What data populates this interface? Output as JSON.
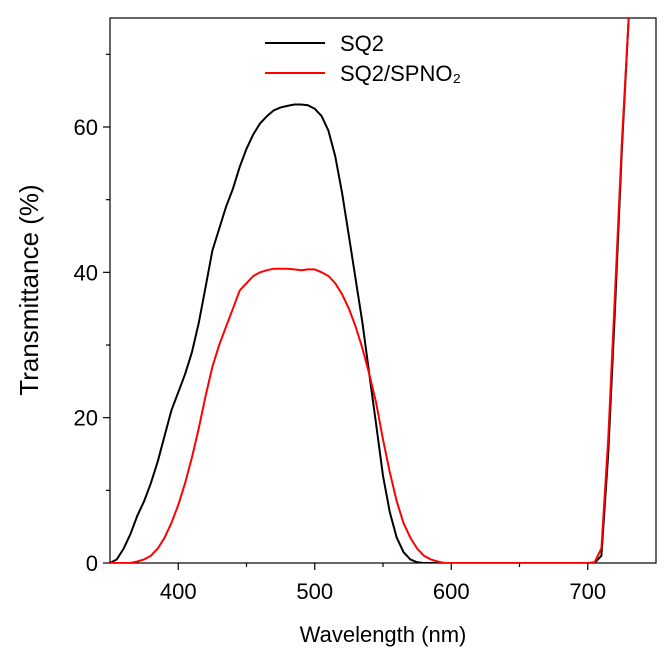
{
  "chart_data": {
    "type": "line",
    "x_label": "Wavelength (nm)",
    "y_label": "Transmittance (%)",
    "x": [
      350,
      355,
      360,
      365,
      370,
      375,
      380,
      385,
      390,
      395,
      400,
      405,
      410,
      415,
      420,
      425,
      430,
      435,
      440,
      445,
      450,
      455,
      460,
      465,
      470,
      475,
      480,
      485,
      490,
      495,
      500,
      505,
      510,
      515,
      520,
      525,
      530,
      535,
      540,
      545,
      550,
      555,
      560,
      565,
      570,
      575,
      580,
      585,
      590,
      595,
      600,
      605,
      610,
      615,
      620,
      625,
      630,
      635,
      640,
      645,
      650,
      655,
      660,
      665,
      670,
      675,
      680,
      685,
      690,
      695,
      700,
      705,
      710,
      715,
      720,
      725,
      730
    ],
    "series": [
      {
        "name": "SQ2",
        "color": "#000000",
        "values": [
          0,
          0.5,
          2,
          4,
          6.5,
          8.5,
          11,
          14,
          17.5,
          21,
          23.5,
          26,
          29,
          33,
          38,
          43,
          46,
          49,
          51.5,
          54.5,
          57,
          59,
          60.5,
          61.5,
          62.3,
          62.7,
          62.9,
          63.1,
          63.1,
          63,
          62.5,
          61.5,
          59.5,
          56,
          51,
          45,
          39,
          33,
          26,
          19,
          12,
          7,
          3.5,
          1.5,
          0.5,
          0.1,
          0,
          0,
          0,
          0,
          0,
          0,
          0,
          0,
          0,
          0,
          0,
          0,
          0,
          0,
          0,
          0,
          0,
          0,
          0,
          0,
          0,
          0,
          0,
          0,
          0,
          0,
          1,
          15,
          35,
          57,
          75
        ]
      },
      {
        "name": "SQ2/SPNO₂",
        "color": "#ff0000",
        "values": [
          0,
          0,
          0,
          0,
          0.2,
          0.5,
          1,
          2,
          3.5,
          5.5,
          8,
          11,
          14.5,
          18.5,
          23,
          27,
          30,
          32.5,
          35,
          37.5,
          38.5,
          39.5,
          40,
          40.3,
          40.5,
          40.5,
          40.5,
          40.4,
          40.3,
          40.4,
          40.4,
          40,
          39.5,
          38.5,
          37,
          35,
          32.5,
          29.5,
          26,
          22,
          17,
          12.5,
          8.5,
          5.5,
          3.5,
          2,
          1,
          0.5,
          0.2,
          0,
          0,
          0,
          0,
          0,
          0,
          0,
          0,
          0,
          0,
          0,
          0,
          0,
          0,
          0,
          0,
          0,
          0,
          0,
          0,
          0,
          0,
          0.1,
          2,
          17,
          37,
          58,
          75
        ]
      }
    ],
    "xlim": [
      350,
      750
    ],
    "xticks": [
      400,
      500,
      600,
      700
    ],
    "xminorticks": [
      450,
      550,
      650
    ],
    "ylim": [
      0,
      75
    ],
    "yticks": [
      0,
      20,
      40,
      60
    ],
    "yminorticks": [
      10,
      30,
      50,
      70
    ],
    "legend": "upper center",
    "grid": false
  }
}
